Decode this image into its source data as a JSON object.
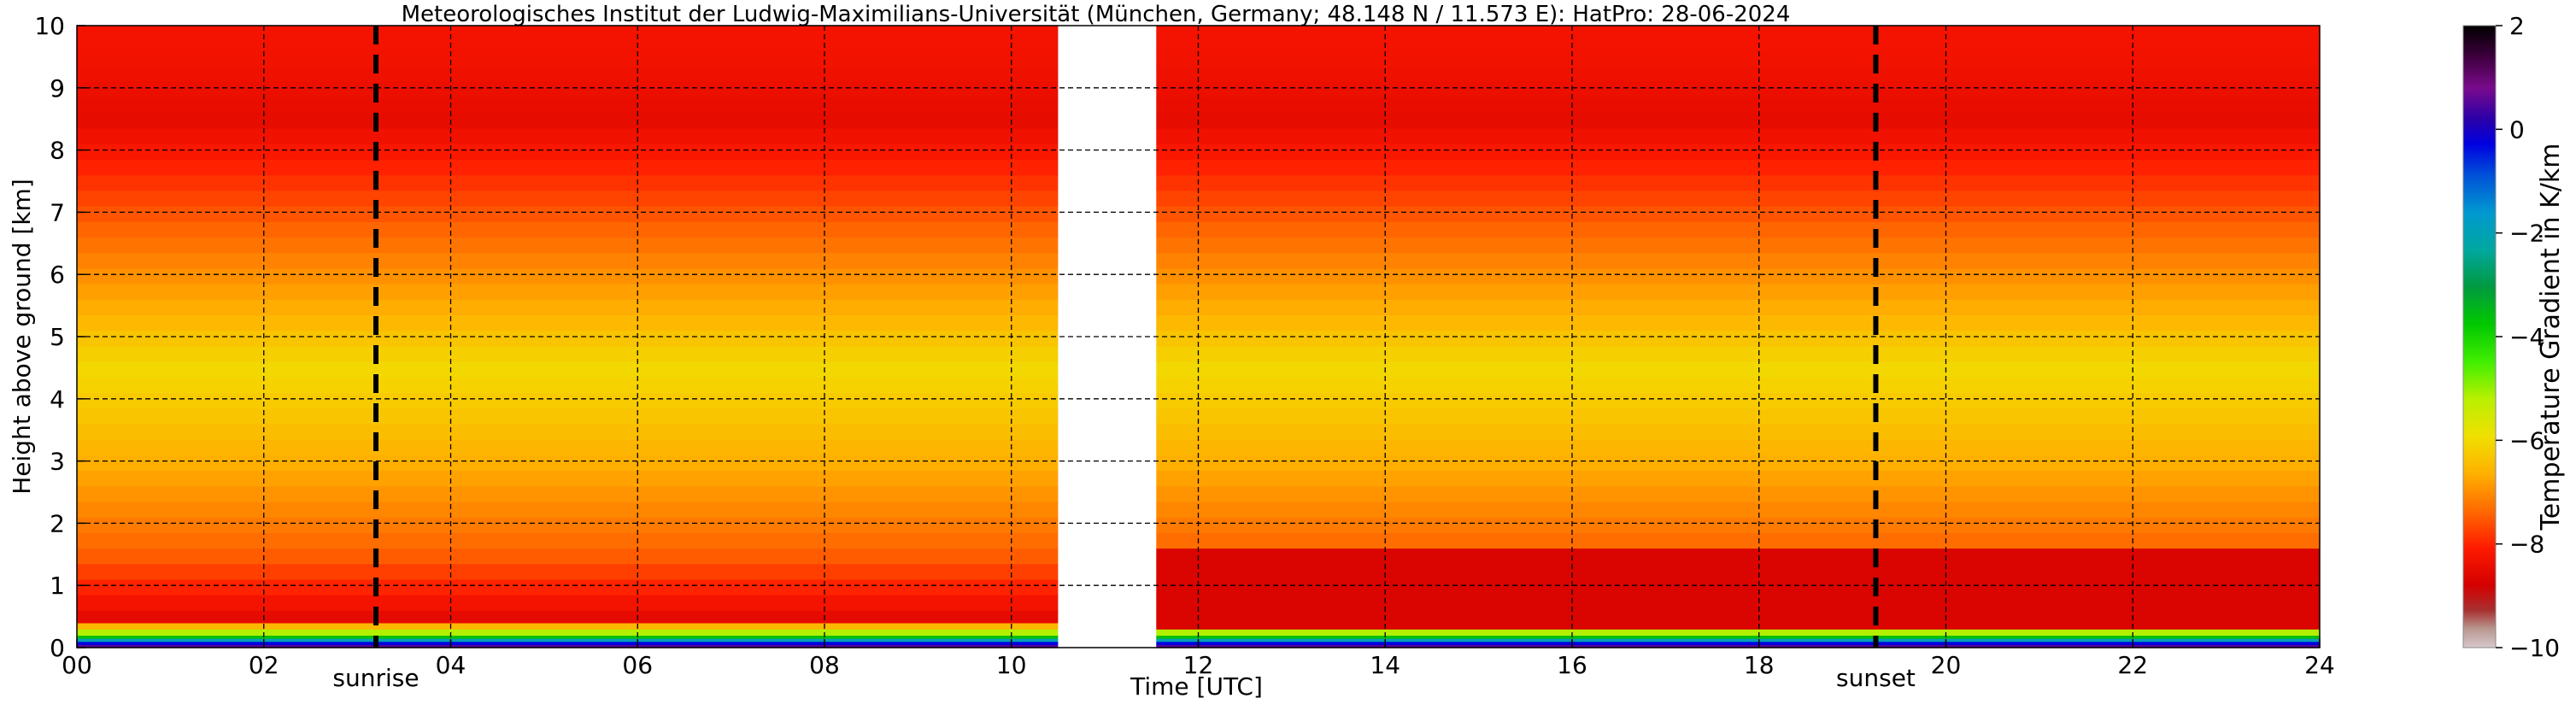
{
  "chart_data": {
    "type": "heatmap",
    "title": "Meteorologisches Institut der Ludwig-Maximilians-Universität (München, Germany; 48.148 N / 11.573 E):    HatPro: 28-06-2024",
    "xlabel": "Time [UTC]",
    "ylabel": "Height above ground [km]",
    "xlim": [
      0,
      24
    ],
    "ylim": [
      0,
      10
    ],
    "x_ticks": [
      "00",
      "02",
      "04",
      "06",
      "08",
      "10",
      "12",
      "14",
      "16",
      "18",
      "20",
      "22",
      "24"
    ],
    "y_ticks": [
      "0",
      "1",
      "2",
      "3",
      "4",
      "5",
      "6",
      "7",
      "8",
      "9",
      "10"
    ],
    "grid": true,
    "colorbar": {
      "label": "Temperature Gradient in K/km",
      "range": [
        -10,
        2
      ],
      "ticks": [
        "2",
        "0",
        "−2",
        "−4",
        "−6",
        "−8",
        "−10"
      ]
    },
    "markers": [
      {
        "label": "sunrise",
        "time": 3.2
      },
      {
        "label": "sunset",
        "time": 19.25
      }
    ],
    "missing_data": [
      {
        "from": 10.5,
        "to": 11.55
      }
    ],
    "profile_summary": [
      {
        "height_km": 0.05,
        "gradient": 0.5
      },
      {
        "height_km": 0.2,
        "gradient": -4.5
      },
      {
        "height_km": 0.5,
        "gradient": -8.5
      },
      {
        "height_km": 1.5,
        "gradient": -7.5
      },
      {
        "height_km": 3.0,
        "gradient": -6.6
      },
      {
        "height_km": 4.5,
        "gradient": -6.0
      },
      {
        "height_km": 6.5,
        "gradient": -7.3
      },
      {
        "height_km": 8.5,
        "gradient": -8.5
      },
      {
        "height_km": 9.5,
        "gradient": -8.3
      }
    ]
  }
}
